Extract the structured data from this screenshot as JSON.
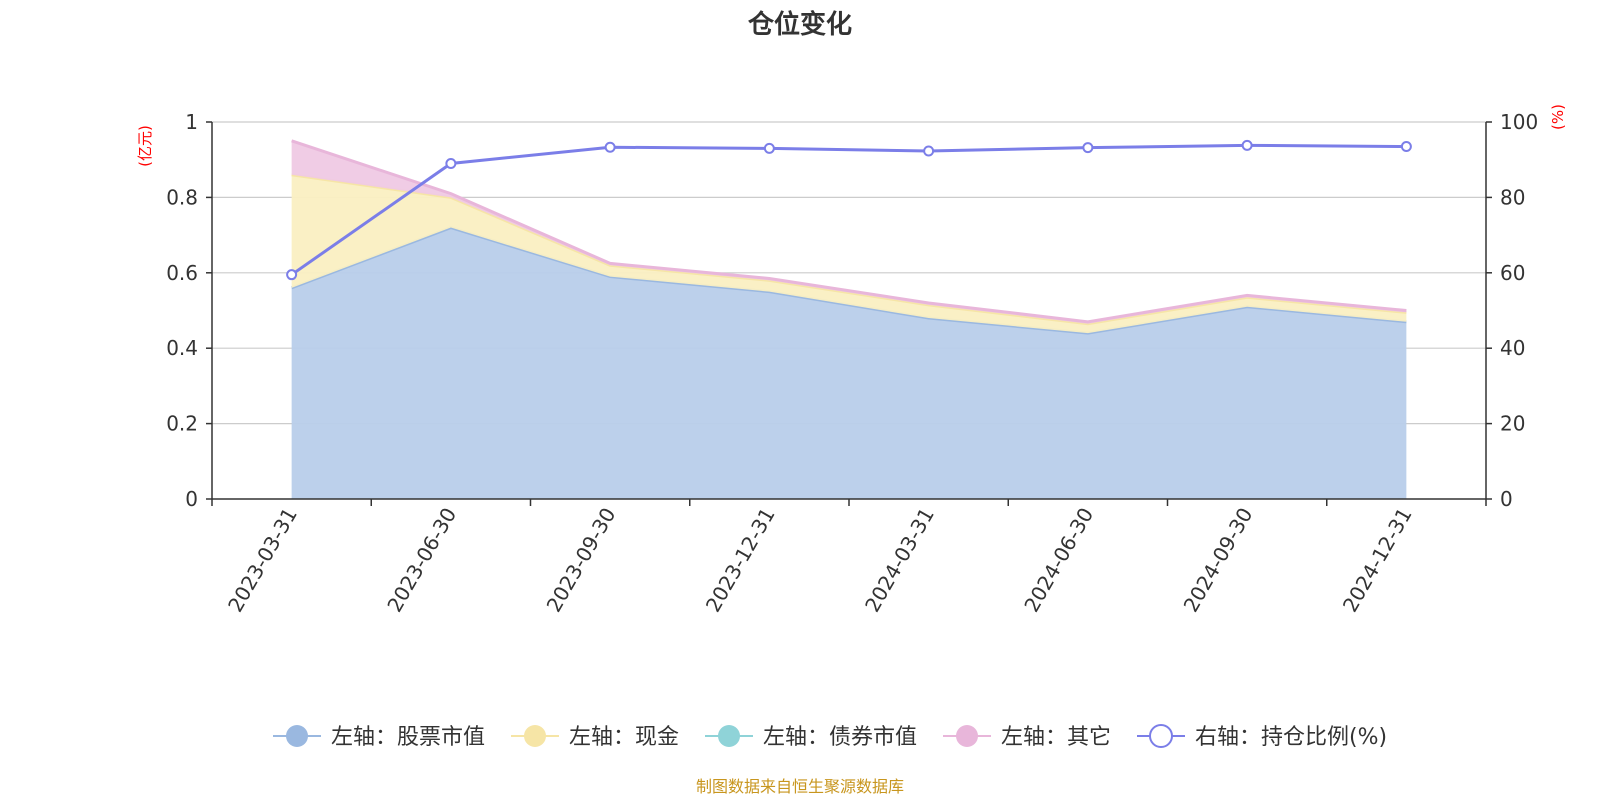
{
  "chart_data": {
    "type": "area",
    "title": "仓位变化",
    "left_axis_unit": "(亿元)",
    "right_axis_unit": "(%)",
    "categories": [
      "2023-03-31",
      "2023-06-30",
      "2023-09-30",
      "2023-12-31",
      "2024-03-31",
      "2024-06-30",
      "2024-09-30",
      "2024-12-31"
    ],
    "left_ylim": [
      0,
      1
    ],
    "left_yticks": [
      "0",
      "0.2",
      "0.4",
      "0.6",
      "0.8",
      "1"
    ],
    "right_ylim": [
      0,
      100
    ],
    "right_yticks": [
      "0",
      "20",
      "40",
      "60",
      "80",
      "100"
    ],
    "grid": true,
    "legend_position": "bottom",
    "stacked": true,
    "series": [
      {
        "name": "左轴：股票市值",
        "axis": "left",
        "kind": "area",
        "color": "#9ab8e0",
        "fill": "#b8cdea",
        "values": [
          0.56,
          0.72,
          0.59,
          0.55,
          0.48,
          0.44,
          0.51,
          0.47
        ]
      },
      {
        "name": "左轴：现金",
        "axis": "left",
        "kind": "area",
        "color": "#f6e5a6",
        "fill": "#faefc2",
        "values": [
          0.3,
          0.08,
          0.03,
          0.03,
          0.035,
          0.025,
          0.025,
          0.025
        ]
      },
      {
        "name": "左轴：债券市值",
        "axis": "left",
        "kind": "area",
        "color": "#8fd3d8",
        "fill": "#b4e3e6",
        "values": [
          0,
          0,
          0,
          0,
          0,
          0,
          0,
          0
        ]
      },
      {
        "name": "左轴：其它",
        "axis": "left",
        "kind": "area",
        "color": "#e8b6da",
        "fill": "#efc9e4",
        "values": [
          0.09,
          0.01,
          0.005,
          0.005,
          0.005,
          0.005,
          0.005,
          0.005
        ]
      },
      {
        "name": "右轴：持仓比例(%)",
        "axis": "right",
        "kind": "line",
        "color": "#7b7ee8",
        "fill": "#ffffff",
        "values": [
          59.5,
          89.0,
          93.3,
          93.0,
          92.3,
          93.2,
          93.8,
          93.5
        ]
      }
    ]
  },
  "source": "制图数据来自恒生聚源数据库"
}
